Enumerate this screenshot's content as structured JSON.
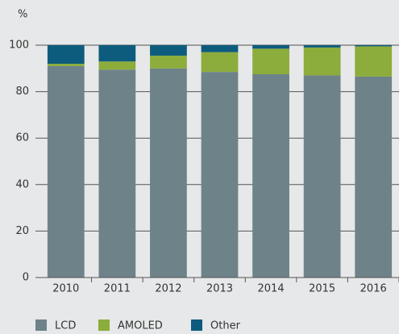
{
  "chart_data": {
    "type": "stacked_bar",
    "y_axis_label": "%",
    "categories": [
      "2010",
      "2011",
      "2012",
      "2013",
      "2014",
      "2015",
      "2016"
    ],
    "series": [
      {
        "name": "LCD",
        "color": "#6e8389",
        "values": [
          91,
          89.5,
          90,
          88.5,
          87.5,
          87,
          86.5
        ]
      },
      {
        "name": "AMOLED",
        "color": "#8cac3c",
        "values": [
          1,
          3.5,
          5.5,
          8.5,
          11,
          12,
          13
        ]
      },
      {
        "name": "Other",
        "color": "#0d5c7d",
        "values": [
          8,
          7,
          4.5,
          3,
          1.5,
          1,
          0.5
        ]
      }
    ],
    "ylim": [
      0,
      100
    ],
    "yticks": [
      0,
      20,
      40,
      60,
      80,
      100
    ],
    "grid": true
  }
}
